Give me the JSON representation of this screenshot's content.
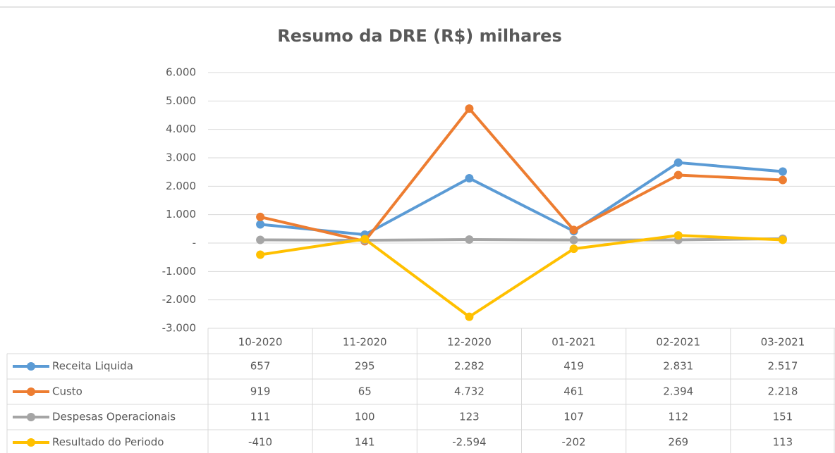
{
  "chart_data": {
    "type": "line",
    "title": "Resumo da DRE (R$) milhares",
    "categories": [
      "10-2020",
      "11-2020",
      "12-2020",
      "01-2021",
      "02-2021",
      "03-2021"
    ],
    "series": [
      {
        "name": "Receita Liquida",
        "color": "#5b9bd5",
        "values": [
          657,
          295,
          2282,
          419,
          2831,
          2517
        ],
        "value_labels": [
          "657",
          "295",
          "2.282",
          "419",
          "2.831",
          "2.517"
        ]
      },
      {
        "name": "Custo",
        "color": "#ed7d31",
        "values": [
          919,
          65,
          4732,
          461,
          2394,
          2218
        ],
        "value_labels": [
          "919",
          "65",
          "4.732",
          "461",
          "2.394",
          "2.218"
        ]
      },
      {
        "name": "Despesas Operacionais",
        "color": "#a5a5a5",
        "values": [
          111,
          100,
          123,
          107,
          112,
          151
        ],
        "value_labels": [
          "111",
          "100",
          "123",
          "107",
          "112",
          "151"
        ]
      },
      {
        "name": "Resultado do Periodo",
        "color": "#ffc000",
        "values": [
          -410,
          141,
          -2594,
          -202,
          269,
          113
        ],
        "value_labels": [
          "-410",
          "141",
          "-2.594",
          "-202",
          "269",
          "113"
        ]
      }
    ],
    "ylim": [
      -3000,
      6000
    ],
    "yticks": [
      {
        "value": -3000,
        "label": "-3.000"
      },
      {
        "value": -2000,
        "label": "-2.000"
      },
      {
        "value": -1000,
        "label": "-1.000"
      },
      {
        "value": 0,
        "label": "-"
      },
      {
        "value": 1000,
        "label": "1.000"
      },
      {
        "value": 2000,
        "label": "2.000"
      },
      {
        "value": 3000,
        "label": "3.000"
      },
      {
        "value": 4000,
        "label": "4.000"
      },
      {
        "value": 5000,
        "label": "5.000"
      },
      {
        "value": 6000,
        "label": "6.000"
      }
    ],
    "grid": true
  }
}
